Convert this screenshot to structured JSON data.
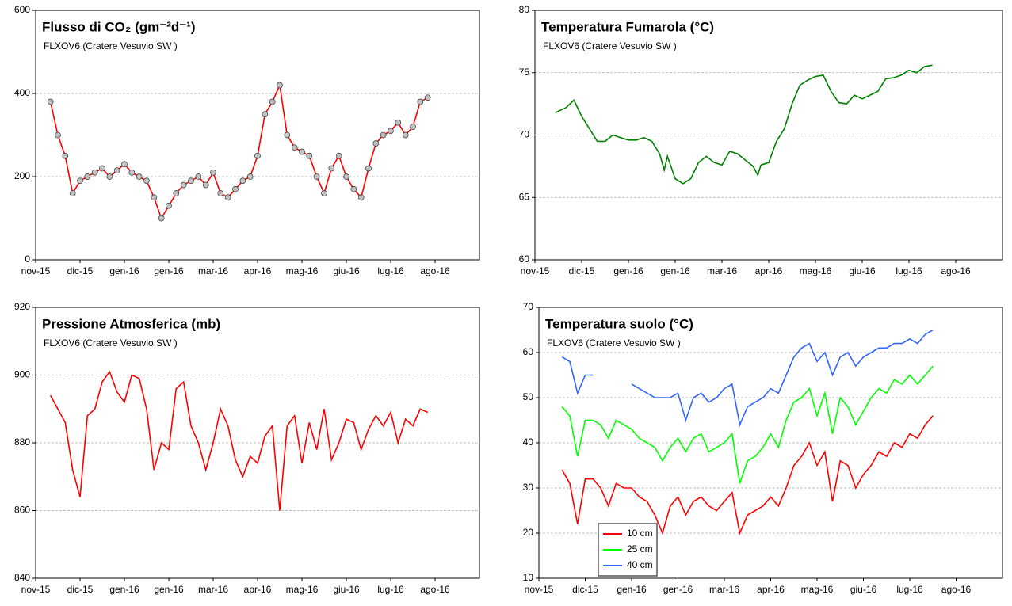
{
  "chart_data": [
    {
      "type": "line",
      "title": "Flusso di CO₂ (gm⁻²d⁻¹)",
      "subtitle": "FLXOV6 (Cratere Vesuvio SW )",
      "grid": true,
      "markers": true,
      "marker_color": "#c0c0c0",
      "xlim": [
        0,
        300
      ],
      "xticks": [
        {
          "value": 0,
          "label": "nov-15"
        },
        {
          "value": 30,
          "label": "dic-15"
        },
        {
          "value": 60,
          "label": "gen-16"
        },
        {
          "value": 90,
          "label": "gen-16"
        },
        {
          "value": 120,
          "label": "mar-16"
        },
        {
          "value": 150,
          "label": "apr-16"
        },
        {
          "value": 180,
          "label": "mag-16"
        },
        {
          "value": 210,
          "label": "giu-16"
        },
        {
          "value": 240,
          "label": "lug-16"
        },
        {
          "value": 270,
          "label": "ago-16"
        }
      ],
      "ylim": [
        0,
        600
      ],
      "yticks": [
        0,
        200,
        400,
        600
      ],
      "x": [
        10,
        15,
        20,
        25,
        30,
        35,
        40,
        45,
        50,
        55,
        60,
        65,
        70,
        75,
        80,
        85,
        90,
        95,
        100,
        105,
        110,
        115,
        120,
        125,
        130,
        135,
        140,
        145,
        150,
        155,
        160,
        165,
        170,
        175,
        180,
        185,
        190,
        195,
        200,
        205,
        210,
        215,
        220,
        225,
        230,
        235,
        240,
        245,
        250,
        255,
        260,
        265
      ],
      "series": [
        {
          "color": "#ff0000",
          "values": [
            380,
            300,
            250,
            160,
            190,
            200,
            210,
            220,
            200,
            215,
            230,
            210,
            200,
            190,
            150,
            100,
            130,
            160,
            180,
            190,
            200,
            180,
            210,
            160,
            150,
            170,
            190,
            200,
            250,
            350,
            380,
            420,
            300,
            270,
            260,
            250,
            200,
            160,
            220,
            250,
            200,
            170,
            150,
            220,
            280,
            300,
            310,
            330,
            300,
            320,
            380,
            390
          ]
        }
      ]
    },
    {
      "type": "line",
      "title": "Temperatura Fumarola (°C)",
      "subtitle": "FLXOV6 (Cratere Vesuvio SW )",
      "grid": true,
      "xlim": [
        0,
        300
      ],
      "xticks": [
        {
          "value": 0,
          "label": "nov-15"
        },
        {
          "value": 30,
          "label": "dic-15"
        },
        {
          "value": 60,
          "label": "gen-16"
        },
        {
          "value": 90,
          "label": "gen-16"
        },
        {
          "value": 120,
          "label": "mar-16"
        },
        {
          "value": 150,
          "label": "apr-16"
        },
        {
          "value": 180,
          "label": "mag-16"
        },
        {
          "value": 210,
          "label": "giu-16"
        },
        {
          "value": 240,
          "label": "lug-16"
        },
        {
          "value": 270,
          "label": "ago-16"
        }
      ],
      "ylim": [
        60,
        80
      ],
      "yticks": [
        60,
        65,
        70,
        75,
        80
      ],
      "x": [
        13,
        20,
        25,
        30,
        35,
        40,
        45,
        50,
        55,
        60,
        65,
        70,
        75,
        80,
        83,
        85,
        90,
        95,
        100,
        105,
        110,
        115,
        120,
        125,
        130,
        135,
        140,
        143,
        145,
        150,
        155,
        160,
        165,
        170,
        175,
        180,
        185,
        190,
        195,
        200,
        205,
        210,
        215,
        220,
        225,
        230,
        235,
        240,
        245,
        250,
        255
      ],
      "series": [
        {
          "color": "#008000",
          "values": [
            71.8,
            72.2,
            72.8,
            71.5,
            70.5,
            69.5,
            69.5,
            70,
            69.8,
            69.6,
            69.6,
            69.8,
            69.5,
            68.5,
            67.2,
            68.3,
            66.5,
            66.1,
            66.5,
            67.8,
            68.3,
            67.8,
            67.6,
            68.7,
            68.5,
            68.0,
            67.5,
            66.8,
            67.6,
            67.8,
            69.5,
            70.5,
            72.5,
            74.0,
            74.4,
            74.7,
            74.8,
            73.5,
            72.6,
            72.5,
            73.2,
            72.9,
            73.2,
            73.5,
            74.5,
            74.6,
            74.8,
            75.2,
            75.0,
            75.5,
            75.6
          ]
        }
      ]
    },
    {
      "type": "line",
      "title": "Pressione Atmosferica (mb)",
      "subtitle": "FLXOV6 (Cratere Vesuvio SW )",
      "grid": true,
      "xlim": [
        0,
        300
      ],
      "xticks": [
        {
          "value": 0,
          "label": "nov-15"
        },
        {
          "value": 30,
          "label": "dic-15"
        },
        {
          "value": 60,
          "label": "gen-16"
        },
        {
          "value": 90,
          "label": "gen-16"
        },
        {
          "value": 120,
          "label": "mar-16"
        },
        {
          "value": 150,
          "label": "apr-16"
        },
        {
          "value": 180,
          "label": "mag-16"
        },
        {
          "value": 210,
          "label": "giu-16"
        },
        {
          "value": 240,
          "label": "lug-16"
        },
        {
          "value": 270,
          "label": "ago-16"
        }
      ],
      "ylim": [
        840,
        920
      ],
      "yticks": [
        840,
        860,
        880,
        900,
        920
      ],
      "x": [
        10,
        15,
        20,
        25,
        30,
        35,
        40,
        45,
        50,
        55,
        60,
        65,
        70,
        75,
        80,
        85,
        90,
        95,
        100,
        105,
        110,
        115,
        120,
        125,
        130,
        135,
        140,
        145,
        150,
        155,
        160,
        165,
        170,
        175,
        180,
        185,
        190,
        195,
        200,
        205,
        210,
        215,
        220,
        225,
        230,
        235,
        240,
        245,
        250,
        255,
        260,
        265
      ],
      "series": [
        {
          "color": "#ff0000",
          "values": [
            894,
            890,
            886,
            872,
            864,
            888,
            890,
            898,
            901,
            895,
            892,
            900,
            899,
            890,
            872,
            880,
            878,
            896,
            898,
            885,
            880,
            872,
            880,
            890,
            885,
            875,
            870,
            876,
            874,
            882,
            885,
            860,
            885,
            888,
            874,
            886,
            878,
            890,
            875,
            880,
            887,
            886,
            878,
            884,
            888,
            885,
            889,
            880,
            887,
            885,
            890,
            889
          ]
        }
      ]
    },
    {
      "type": "line",
      "title": "Temperatura suolo (°C)",
      "subtitle": "FLXOV6 (Cratere Vesuvio SW )",
      "grid": true,
      "legend": "bottom-left",
      "xlim": [
        0,
        300
      ],
      "xticks": [
        {
          "value": 0,
          "label": "nov-15"
        },
        {
          "value": 30,
          "label": "dic-15"
        },
        {
          "value": 60,
          "label": "gen-16"
        },
        {
          "value": 90,
          "label": "gen-16"
        },
        {
          "value": 120,
          "label": "mar-16"
        },
        {
          "value": 150,
          "label": "apr-16"
        },
        {
          "value": 180,
          "label": "mag-16"
        },
        {
          "value": 210,
          "label": "giu-16"
        },
        {
          "value": 240,
          "label": "lug-16"
        },
        {
          "value": 270,
          "label": "ago-16"
        }
      ],
      "ylim": [
        10,
        70
      ],
      "yticks": [
        10,
        20,
        30,
        40,
        50,
        60,
        70
      ],
      "x": [
        15,
        20,
        25,
        30,
        35,
        40,
        45,
        50,
        55,
        60,
        65,
        70,
        75,
        80,
        85,
        90,
        95,
        100,
        105,
        110,
        115,
        120,
        125,
        130,
        135,
        140,
        145,
        150,
        155,
        160,
        165,
        170,
        175,
        180,
        185,
        190,
        195,
        200,
        205,
        210,
        215,
        220,
        225,
        230,
        235,
        240,
        245,
        250,
        255
      ],
      "series": [
        {
          "name": "10 cm",
          "color": "#ff0000",
          "values": [
            34,
            31,
            22,
            32,
            32,
            30,
            26,
            31,
            30,
            30,
            28,
            27,
            24,
            20,
            26,
            28,
            24,
            27,
            28,
            26,
            25,
            27,
            29,
            20,
            24,
            25,
            26,
            28,
            26,
            30,
            35,
            37,
            40,
            35,
            38,
            27,
            36,
            35,
            30,
            33,
            35,
            38,
            37,
            40,
            39,
            42,
            41,
            44,
            46
          ]
        },
        {
          "name": "25 cm",
          "color": "#00ff00",
          "values": [
            48,
            46,
            37,
            45,
            45,
            44,
            41,
            45,
            44,
            43,
            41,
            40,
            39,
            36,
            39,
            41,
            38,
            41,
            42,
            38,
            39,
            40,
            42,
            31,
            36,
            37,
            39,
            42,
            39,
            45,
            49,
            50,
            52,
            46,
            51,
            42,
            50,
            48,
            44,
            47,
            50,
            52,
            51,
            54,
            53,
            55,
            53,
            55,
            57
          ]
        },
        {
          "name": "40 cm",
          "color": "#3366ff",
          "values": [
            59,
            58,
            51,
            55,
            55,
            null,
            53,
            null,
            null,
            53,
            52,
            51,
            50,
            50,
            50,
            51,
            45,
            50,
            51,
            49,
            50,
            52,
            53,
            44,
            48,
            49,
            50,
            52,
            51,
            55,
            59,
            61,
            62,
            58,
            60,
            55,
            59,
            60,
            57,
            59,
            60,
            61,
            61,
            62,
            62,
            63,
            62,
            64,
            65
          ]
        }
      ]
    }
  ]
}
